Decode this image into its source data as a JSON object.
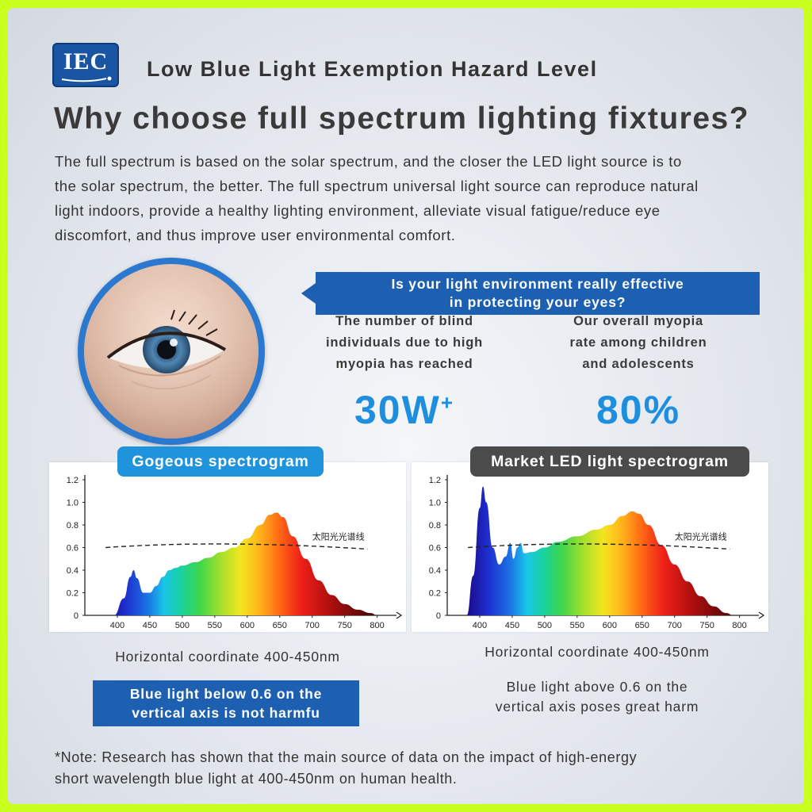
{
  "logo": {
    "text": "IEC"
  },
  "header": {
    "subtitle": "Low Blue Light Exemption Hazard Level",
    "title": "Why choose full spectrum lighting fixtures?"
  },
  "intro": {
    "lines": [
      "The full spectrum is based on the solar spectrum, and the closer the LED light source is to",
      "the solar spectrum, the better. The full spectrum universal light source can reproduce natural",
      "light indoors, provide a healthy lighting environment, alleviate visual fatigue/reduce eye",
      "discomfort, and thus improve user environmental comfort."
    ]
  },
  "question": {
    "line1": "Is your light environment really effective",
    "line2": "in protecting your eyes?"
  },
  "stats": [
    {
      "label_lines": [
        "The number of blind",
        "individuals due to high",
        "myopia has reached"
      ],
      "value": "30W",
      "superscript": "+"
    },
    {
      "label_lines": [
        "Our overall myopia",
        "rate among children",
        "and adolescents"
      ],
      "value": "80%"
    }
  ],
  "charts": {
    "left_title": "Gogeous spectrogram",
    "right_title": "Market LED light spectrogram",
    "left_caption": "Horizontal coordinate 400-450nm",
    "right_caption": "Horizontal coordinate 400-450nm",
    "left_banner": [
      "Blue light below 0.6 on the",
      "vertical axis is not harmfu"
    ],
    "right_text": [
      "Blue light above 0.6 on the",
      "vertical axis poses great harm"
    ]
  },
  "note": {
    "lines": [
      "*Note: Research has shown that the main source of data on the impact of high-energy",
      "short wavelength blue light at 400-450nm on human health."
    ]
  },
  "colors": {
    "brand_blue": "#1d5fb0",
    "accent_blue": "#1f93dc",
    "stat_blue": "#1e8ede",
    "dark_pill": "#4b4b4b"
  },
  "chart_data": [
    {
      "type": "area",
      "title": "Gogeous spectrogram",
      "x_ticks": [
        400,
        450,
        500,
        550,
        600,
        650,
        700,
        750,
        800
      ],
      "y_ticks": [
        "0",
        "0.2",
        "0.4",
        "0.6",
        "0.8",
        "1.0",
        "1.2"
      ],
      "ylim": [
        0,
        1.2
      ],
      "xlim": [
        350,
        820
      ],
      "reference_label": "太阳光光谱线",
      "reference_level": 0.6,
      "series": [
        {
          "x": [
            395,
            410,
            420,
            425,
            430,
            440,
            450,
            460,
            470,
            480,
            490,
            500,
            520,
            540,
            560,
            580,
            600,
            620,
            635,
            645,
            655,
            670,
            690,
            710,
            730,
            750,
            770,
            790,
            800
          ],
          "y": [
            0,
            0.15,
            0.34,
            0.4,
            0.33,
            0.2,
            0.2,
            0.26,
            0.34,
            0.4,
            0.42,
            0.44,
            0.47,
            0.51,
            0.56,
            0.6,
            0.68,
            0.8,
            0.89,
            0.91,
            0.87,
            0.7,
            0.5,
            0.31,
            0.18,
            0.1,
            0.05,
            0.02,
            0
          ]
        }
      ]
    },
    {
      "type": "area",
      "title": "Market LED light spectrogram",
      "x_ticks": [
        400,
        450,
        500,
        550,
        600,
        650,
        700,
        750,
        800
      ],
      "y_ticks": [
        "0",
        "0.2",
        "0.4",
        "0.6",
        "0.8",
        "1.0",
        "1.2"
      ],
      "ylim": [
        0,
        1.2
      ],
      "xlim": [
        350,
        820
      ],
      "reference_label": "太阳光光谱线",
      "reference_level": 0.6,
      "series": [
        {
          "x": [
            380,
            390,
            400,
            405,
            410,
            420,
            430,
            440,
            447,
            452,
            458,
            463,
            468,
            480,
            500,
            520,
            550,
            580,
            600,
            620,
            635,
            645,
            660,
            680,
            700,
            720,
            740,
            760,
            780,
            790
          ],
          "y": [
            0,
            0.35,
            0.95,
            1.14,
            1.0,
            0.6,
            0.45,
            0.52,
            0.64,
            0.5,
            0.6,
            0.64,
            0.55,
            0.56,
            0.6,
            0.65,
            0.7,
            0.76,
            0.8,
            0.88,
            0.92,
            0.9,
            0.8,
            0.62,
            0.45,
            0.3,
            0.17,
            0.08,
            0.02,
            0
          ]
        }
      ]
    }
  ]
}
